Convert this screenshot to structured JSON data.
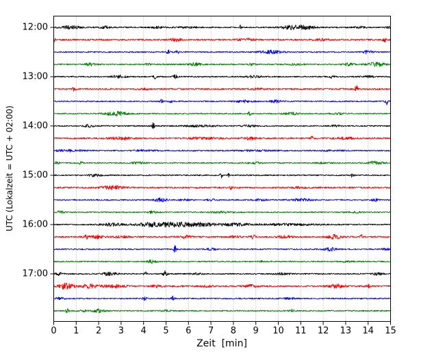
{
  "chart_data": {
    "type": "line",
    "subtype": "seismogram-helicorder-dayplot",
    "title": "",
    "xlabel": "Zeit  [min]",
    "ylabel": "UTC (Lokalzeit = UTC + 02:00)",
    "xlim": [
      0,
      15
    ],
    "x_ticks": [
      "0",
      "1",
      "2",
      "3",
      "4",
      "5",
      "6",
      "7",
      "8",
      "9",
      "10",
      "11",
      "12",
      "13",
      "14",
      "15"
    ],
    "y_ticks": [
      "12:00",
      "13:00",
      "14:00",
      "15:00",
      "16:00",
      "17:00"
    ],
    "minutes_per_line": 15,
    "grid": {
      "vertical": true,
      "horizontal": false,
      "style": "dotted",
      "color": "#999999"
    },
    "frame_color": "#000000",
    "color_cycle": [
      "#000000",
      "#ff0000",
      "#0000ff",
      "#008000"
    ],
    "traces": [
      {
        "start": "12:00",
        "color": "#000000",
        "base": 0.9,
        "events": [
          [
            0.75,
            0.45,
            2.2
          ],
          [
            2.3,
            0.25,
            1.6
          ],
          [
            4.6,
            0.3,
            1.0
          ],
          [
            5.9,
            0.5,
            1.1
          ],
          [
            8.3,
            0.05,
            4.0
          ],
          [
            10.6,
            0.5,
            2.6
          ],
          [
            11.3,
            0.4,
            2.2
          ],
          [
            13.6,
            0.3,
            1.4
          ],
          [
            14.9,
            0.1,
            1.5
          ]
        ]
      },
      {
        "start": "12:15",
        "color": "#ff0000",
        "base": 1.1,
        "events": [
          [
            0.03,
            0.06,
            5.5
          ],
          [
            5.45,
            0.25,
            2.0
          ],
          [
            8.5,
            0.35,
            1.6
          ],
          [
            11.9,
            0.3,
            1.2
          ],
          [
            14.72,
            0.06,
            6.0
          ]
        ]
      },
      {
        "start": "12:30",
        "color": "#0000ff",
        "base": 0.9,
        "events": [
          [
            5.1,
            0.09,
            2.6
          ],
          [
            5.5,
            0.07,
            2.2
          ],
          [
            9.7,
            0.5,
            2.4
          ],
          [
            13.9,
            0.1,
            2.4
          ],
          [
            14.15,
            0.15,
            1.5
          ]
        ]
      },
      {
        "start": "12:45",
        "color": "#008000",
        "base": 0.9,
        "events": [
          [
            1.65,
            0.25,
            1.7
          ],
          [
            4.2,
            0.12,
            1.4
          ],
          [
            6.3,
            0.3,
            2.0
          ],
          [
            8.8,
            0.25,
            1.2
          ],
          [
            10.8,
            0.3,
            1.2
          ],
          [
            13.1,
            0.3,
            1.8
          ],
          [
            14.35,
            0.4,
            2.6
          ]
        ]
      },
      {
        "start": "13:00",
        "color": "#000000",
        "base": 0.9,
        "events": [
          [
            2.9,
            0.35,
            2.0
          ],
          [
            4.5,
            0.08,
            2.8
          ],
          [
            5.4,
            0.08,
            4.2
          ],
          [
            8.9,
            0.35,
            1.4
          ],
          [
            12.4,
            0.08,
            3.2
          ],
          [
            14.0,
            0.3,
            1.2
          ]
        ]
      },
      {
        "start": "13:15",
        "color": "#ff0000",
        "base": 1.1,
        "events": [
          [
            0.9,
            0.07,
            3.0
          ],
          [
            4.0,
            0.2,
            1.1
          ],
          [
            9.0,
            0.3,
            1.0
          ],
          [
            13.48,
            0.06,
            5.5
          ]
        ]
      },
      {
        "start": "13:30",
        "color": "#0000ff",
        "base": 0.9,
        "events": [
          [
            4.8,
            0.07,
            2.8
          ],
          [
            5.2,
            0.08,
            2.0
          ],
          [
            8.5,
            0.45,
            1.6
          ],
          [
            9.9,
            0.25,
            2.3
          ],
          [
            14.82,
            0.06,
            4.8
          ]
        ]
      },
      {
        "start": "13:45",
        "color": "#008000",
        "base": 0.9,
        "events": [
          [
            2.75,
            0.5,
            2.8
          ],
          [
            8.72,
            0.06,
            2.6
          ],
          [
            10.6,
            0.35,
            1.7
          ],
          [
            12.7,
            0.3,
            1.2
          ]
        ]
      },
      {
        "start": "14:00",
        "color": "#000000",
        "base": 0.9,
        "events": [
          [
            1.55,
            0.22,
            2.0
          ],
          [
            4.42,
            0.07,
            4.5
          ],
          [
            6.5,
            0.7,
            1.1
          ],
          [
            8.7,
            0.3,
            1.2
          ],
          [
            12.5,
            0.25,
            1.1
          ]
        ]
      },
      {
        "start": "14:15",
        "color": "#ff0000",
        "base": 1.1,
        "events": [
          [
            3.0,
            0.5,
            1.7
          ],
          [
            6.5,
            0.9,
            1.1
          ],
          [
            8.7,
            0.35,
            1.7
          ],
          [
            11.5,
            0.07,
            2.8
          ],
          [
            13.0,
            0.5,
            1.1
          ]
        ]
      },
      {
        "start": "14:30",
        "color": "#0000ff",
        "base": 0.9,
        "events": [
          [
            0.7,
            0.7,
            1.4
          ],
          [
            4.0,
            0.5,
            0.9
          ],
          [
            9.0,
            0.9,
            0.9
          ],
          [
            12.5,
            0.5,
            0.8
          ]
        ]
      },
      {
        "start": "14:45",
        "color": "#008000",
        "base": 0.9,
        "events": [
          [
            0.15,
            0.1,
            1.9
          ],
          [
            1.2,
            0.07,
            3.2
          ],
          [
            3.8,
            0.3,
            1.3
          ],
          [
            9.0,
            0.3,
            1.1
          ],
          [
            12.0,
            0.3,
            1.1
          ],
          [
            14.3,
            0.35,
            2.3
          ]
        ]
      },
      {
        "start": "15:00",
        "color": "#000000",
        "base": 0.9,
        "events": [
          [
            1.85,
            0.28,
            1.7
          ],
          [
            7.45,
            0.07,
            4.2
          ],
          [
            7.8,
            0.06,
            2.8
          ],
          [
            13.3,
            0.07,
            3.0
          ]
        ]
      },
      {
        "start": "15:15",
        "color": "#ff0000",
        "base": 1.1,
        "events": [
          [
            2.6,
            0.45,
            2.6
          ],
          [
            7.9,
            0.06,
            3.2
          ],
          [
            11.0,
            0.4,
            1.1
          ]
        ]
      },
      {
        "start": "15:30",
        "color": "#0000ff",
        "base": 0.9,
        "events": [
          [
            4.75,
            0.28,
            2.6
          ],
          [
            5.8,
            0.2,
            1.4
          ],
          [
            7.0,
            0.14,
            1.7
          ],
          [
            9.2,
            0.28,
            1.4
          ],
          [
            11.0,
            0.45,
            1.7
          ],
          [
            14.3,
            0.14,
            1.7
          ]
        ]
      },
      {
        "start": "15:45",
        "color": "#008000",
        "base": 0.9,
        "events": [
          [
            0.3,
            0.15,
            1.7
          ],
          [
            4.4,
            0.2,
            1.4
          ],
          [
            7.5,
            0.5,
            0.9
          ],
          [
            13.5,
            0.3,
            0.9
          ]
        ]
      },
      {
        "start": "16:00",
        "color": "#000000",
        "base": 0.9,
        "events": [
          [
            2.6,
            0.5,
            1.9
          ],
          [
            4.2,
            0.5,
            2.4
          ],
          [
            5.4,
            0.8,
            3.4
          ],
          [
            6.6,
            0.5,
            2.4
          ],
          [
            8.0,
            0.8,
            1.7
          ],
          [
            10.5,
            1.4,
            1.2
          ]
        ]
      },
      {
        "start": "16:15",
        "color": "#ff0000",
        "base": 1.1,
        "events": [
          [
            1.45,
            0.09,
            2.8
          ],
          [
            1.95,
            0.28,
            2.1
          ],
          [
            3.0,
            0.3,
            1.3
          ],
          [
            5.8,
            0.32,
            1.9
          ],
          [
            8.1,
            0.22,
            1.9
          ],
          [
            8.9,
            0.18,
            2.1
          ],
          [
            10.3,
            0.28,
            1.9
          ],
          [
            12.5,
            0.32,
            2.6
          ],
          [
            13.7,
            0.07,
            3.0
          ]
        ]
      },
      {
        "start": "16:30",
        "color": "#0000ff",
        "base": 0.9,
        "events": [
          [
            5.4,
            0.07,
            4.8
          ],
          [
            7.0,
            0.22,
            1.4
          ],
          [
            12.3,
            0.28,
            2.1
          ],
          [
            14.8,
            0.2,
            1.4
          ]
        ]
      },
      {
        "start": "16:45",
        "color": "#008000",
        "base": 0.9,
        "events": [
          [
            4.35,
            0.22,
            1.9
          ],
          [
            9.2,
            0.09,
            1.4
          ],
          [
            13.0,
            0.3,
            0.8
          ]
        ]
      },
      {
        "start": "17:00",
        "color": "#000000",
        "base": 0.9,
        "events": [
          [
            0.2,
            0.18,
            2.3
          ],
          [
            2.5,
            0.28,
            2.6
          ],
          [
            4.1,
            0.1,
            2.3
          ],
          [
            4.95,
            0.09,
            3.8
          ],
          [
            6.3,
            0.28,
            1.1
          ],
          [
            10.2,
            0.35,
            1.4
          ],
          [
            14.4,
            0.28,
            1.4
          ]
        ]
      },
      {
        "start": "17:15",
        "color": "#ff0000",
        "base": 1.1,
        "events": [
          [
            0.55,
            0.32,
            4.2
          ],
          [
            1.6,
            0.45,
            2.3
          ],
          [
            2.7,
            0.45,
            1.9
          ],
          [
            4.6,
            0.28,
            1.4
          ],
          [
            6.8,
            0.28,
            1.2
          ],
          [
            8.8,
            0.28,
            1.9
          ],
          [
            12.6,
            0.35,
            2.3
          ],
          [
            14.0,
            0.09,
            1.9
          ]
        ]
      },
      {
        "start": "17:30",
        "color": "#0000ff",
        "base": 0.9,
        "events": [
          [
            0.3,
            0.18,
            1.7
          ],
          [
            4.05,
            0.09,
            2.1
          ],
          [
            5.3,
            0.08,
            3.2
          ],
          [
            10.5,
            0.28,
            1.1
          ]
        ]
      },
      {
        "start": "17:45",
        "color": "#008000",
        "base": 0.9,
        "events": [
          [
            0.6,
            0.07,
            2.8
          ],
          [
            1.3,
            0.18,
            1.4
          ],
          [
            2.0,
            0.28,
            2.3
          ],
          [
            5.0,
            0.28,
            0.9
          ],
          [
            10.6,
            0.09,
            1.9
          ]
        ]
      }
    ]
  }
}
